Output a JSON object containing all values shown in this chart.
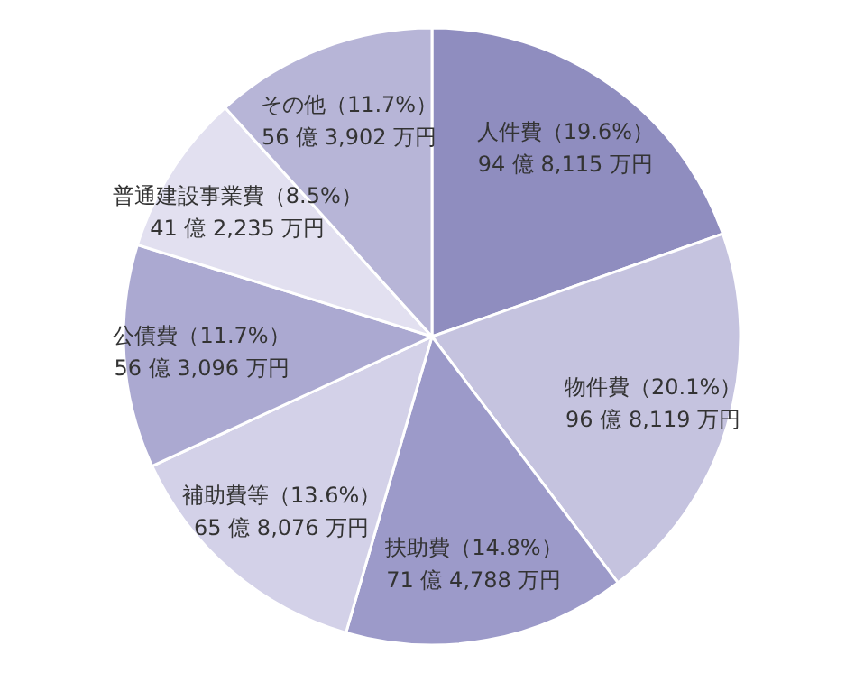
{
  "chart_data": {
    "type": "pie",
    "categories": [
      "人件費（19.6%）",
      "物件費（20.1%）",
      "扶助費（14.8%）",
      "補助費等（13.6%）",
      "公債費（11.7%）",
      "普通建設事業費（8.5%）",
      "その他（11.7%）"
    ],
    "values": [
      19.6,
      20.1,
      14.8,
      13.6,
      11.7,
      8.5,
      11.7
    ],
    "annotations": [
      "94 億 8,115 万円",
      "96 億 8,119 万円",
      "71 億 4,788 万円",
      "65 億 8,076 万円",
      "56 億 3,096 万円",
      "41 億 2,235 万円",
      "56 億 3,902 万円"
    ],
    "colors": [
      "#8f8dbf",
      "#c5c3df",
      "#9c9ac9",
      "#d3d1e8",
      "#aba9d1",
      "#e2e0f0",
      "#b7b5d7"
    ]
  }
}
